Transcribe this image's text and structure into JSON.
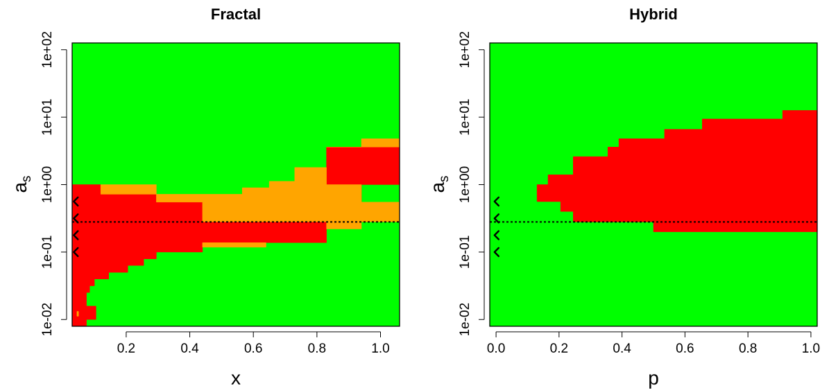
{
  "colors": {
    "stable": "#00ff00",
    "unstable": "#ff0000",
    "mixed": "#ffa500",
    "frame": "#000000"
  },
  "chart_data": [
    {
      "type": "heatmap",
      "title": "Fractal",
      "xlabel": "x",
      "ylabel": "a",
      "ylabel_subscript": "s",
      "x_scale": "linear",
      "y_scale": "log",
      "xlim": [
        0.03,
        1.06
      ],
      "ylim": [
        0.00794,
        126
      ],
      "xticks": [
        0.2,
        0.4,
        0.6,
        0.8,
        1.0
      ],
      "xtick_labels": [
        "0.2",
        "0.4",
        "0.6",
        "0.8",
        "1.0"
      ],
      "yticks": [
        0.01,
        0.1,
        1,
        10,
        100
      ],
      "ytick_labels": [
        "1e-02",
        "1e-01",
        "1e+00",
        "1e+01",
        "1e+02"
      ],
      "background": "stable",
      "regions": [
        {
          "category": "unstable",
          "polygon": [
            [
              0.03,
              0.0079
            ],
            [
              0.075,
              0.0079
            ],
            [
              0.075,
              0.01
            ],
            [
              0.105,
              0.01
            ],
            [
              0.105,
              0.0158
            ],
            [
              0.075,
              0.0158
            ],
            [
              0.075,
              0.0251
            ],
            [
              0.085,
              0.0251
            ],
            [
              0.085,
              0.0316
            ],
            [
              0.1,
              0.0316
            ],
            [
              0.1,
              0.0398
            ],
            [
              0.145,
              0.0398
            ],
            [
              0.145,
              0.05
            ],
            [
              0.205,
              0.05
            ],
            [
              0.205,
              0.0631
            ],
            [
              0.255,
              0.0631
            ],
            [
              0.255,
              0.079
            ],
            [
              0.295,
              0.079
            ],
            [
              0.295,
              0.1
            ],
            [
              0.44,
              0.1
            ],
            [
              0.44,
              0.138
            ],
            [
              0.83,
              0.138
            ],
            [
              0.83,
              0.28
            ],
            [
              0.44,
              0.28
            ],
            [
              0.44,
              0.55
            ],
            [
              0.295,
              0.55
            ],
            [
              0.295,
              0.72
            ],
            [
              0.12,
              0.72
            ],
            [
              0.12,
              1.0
            ],
            [
              0.03,
              1.0
            ]
          ]
        },
        {
          "category": "unstable",
          "polygon": [
            [
              0.83,
              0.55
            ],
            [
              0.94,
              0.55
            ],
            [
              0.94,
              1.0
            ],
            [
              1.06,
              1.0
            ],
            [
              1.06,
              3.6
            ],
            [
              0.83,
              3.6
            ]
          ]
        },
        {
          "category": "mixed",
          "polygon": [
            [
              0.12,
              1.0
            ],
            [
              0.295,
              1.0
            ],
            [
              0.295,
              0.72
            ],
            [
              0.12,
              0.72
            ]
          ]
        },
        {
          "category": "mixed",
          "polygon": [
            [
              0.295,
              0.55
            ],
            [
              0.44,
              0.55
            ],
            [
              0.44,
              0.28
            ],
            [
              0.83,
              0.28
            ],
            [
              0.83,
              0.22
            ],
            [
              0.94,
              0.22
            ],
            [
              0.94,
              0.28
            ],
            [
              1.06,
              0.28
            ],
            [
              1.06,
              0.55
            ],
            [
              0.94,
              0.55
            ],
            [
              0.94,
              1.0
            ],
            [
              0.83,
              1.0
            ],
            [
              0.83,
              1.8
            ],
            [
              0.73,
              1.8
            ],
            [
              0.73,
              1.12
            ],
            [
              0.65,
              1.12
            ],
            [
              0.65,
              0.9
            ],
            [
              0.565,
              0.9
            ],
            [
              0.565,
              0.72
            ],
            [
              0.295,
              0.72
            ]
          ]
        },
        {
          "category": "mixed",
          "polygon": [
            [
              0.83,
              3.6
            ],
            [
              1.06,
              3.6
            ],
            [
              1.06,
              4.8
            ],
            [
              0.94,
              4.8
            ],
            [
              0.94,
              3.6
            ]
          ]
        },
        {
          "category": "mixed",
          "polygon": [
            [
              0.44,
              0.138
            ],
            [
              0.64,
              0.138
            ],
            [
              0.64,
              0.118
            ],
            [
              0.44,
              0.118
            ]
          ]
        },
        {
          "category": "mixed",
          "polygon": [
            [
              0.045,
              0.0112
            ],
            [
              0.05,
              0.0112
            ],
            [
              0.05,
              0.0132
            ],
            [
              0.045,
              0.0132
            ]
          ]
        }
      ],
      "hline": {
        "y": 0.28,
        "style": "dotted"
      },
      "markers": {
        "symbol": "<",
        "x": 0.035,
        "y": [
          0.1,
          0.178,
          0.316,
          0.562
        ]
      }
    },
    {
      "type": "heatmap",
      "title": "Hybrid",
      "xlabel": "p",
      "ylabel": "a",
      "ylabel_subscript": "s",
      "x_scale": "linear",
      "y_scale": "log",
      "xlim": [
        -0.02,
        1.02
      ],
      "ylim": [
        0.00794,
        126
      ],
      "xticks": [
        0.0,
        0.2,
        0.4,
        0.6,
        0.8,
        1.0
      ],
      "xtick_labels": [
        "0.0",
        "0.2",
        "0.4",
        "0.6",
        "0.8",
        "1.0"
      ],
      "yticks": [
        0.01,
        0.1,
        1,
        10,
        100
      ],
      "ytick_labels": [
        "1e-02",
        "1e-01",
        "1e+00",
        "1e+01",
        "1e+02"
      ],
      "background": "stable",
      "regions": [
        {
          "category": "unstable",
          "polygon": [
            [
              0.13,
              0.56
            ],
            [
              0.13,
              1.0
            ],
            [
              0.165,
              1.0
            ],
            [
              0.165,
              1.4
            ],
            [
              0.245,
              1.4
            ],
            [
              0.245,
              2.6
            ],
            [
              0.355,
              2.6
            ],
            [
              0.355,
              3.6
            ],
            [
              0.39,
              3.6
            ],
            [
              0.39,
              4.8
            ],
            [
              0.535,
              4.8
            ],
            [
              0.535,
              6.6
            ],
            [
              0.655,
              6.6
            ],
            [
              0.655,
              9.4
            ],
            [
              0.91,
              9.4
            ],
            [
              0.91,
              12.6
            ],
            [
              1.02,
              12.6
            ],
            [
              1.02,
              0.2
            ],
            [
              0.5,
              0.2
            ],
            [
              0.5,
              0.28
            ],
            [
              0.245,
              0.28
            ],
            [
              0.245,
              0.4
            ],
            [
              0.205,
              0.4
            ],
            [
              0.205,
              0.56
            ]
          ]
        }
      ],
      "hline": {
        "y": 0.28,
        "style": "dotted"
      },
      "markers": {
        "symbol": "<",
        "x": -0.005,
        "y": [
          0.1,
          0.178,
          0.316,
          0.562
        ]
      }
    }
  ]
}
